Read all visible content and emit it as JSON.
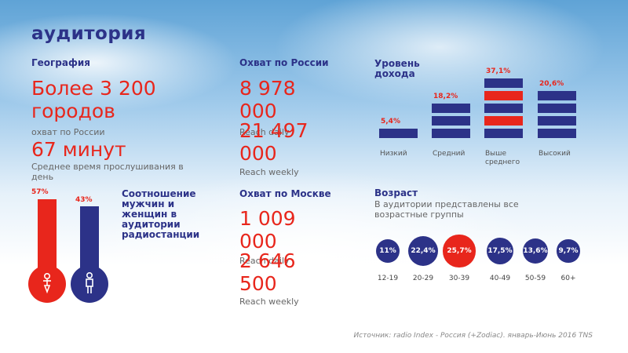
{
  "title": "аудитория",
  "geography": {
    "header": "География",
    "cities_value": "Более 3 200 городов",
    "cities_caption": "охват по России",
    "minutes_value": "67 минут",
    "minutes_caption": "Среднее время прослушивания в день"
  },
  "gender": {
    "female_pct": "57%",
    "male_pct": "43%",
    "female_fraction": 0.57,
    "male_fraction": 0.43,
    "caption": "Соотношение мужчин и женщин в аудитории радиостанции",
    "female_icon": "female-person-icon",
    "male_icon": "male-person-icon"
  },
  "reach_russia": {
    "header": "Охват по России",
    "daily_value": "8 978 000",
    "daily_label": "Reach daily",
    "weekly_value": "21 497 000",
    "weekly_label": "Reach weekly"
  },
  "reach_moscow": {
    "header": "Охват по Москве",
    "daily_value": "1 009 000",
    "daily_label": "Reach daily",
    "weekly_value": "2 646 500",
    "weekly_label": "Reach weekly"
  },
  "income": {
    "header": "Уровень дохода",
    "items": [
      {
        "pct": "5,4%",
        "label": "Низкий",
        "bars": 1,
        "highlight": false
      },
      {
        "pct": "18,2%",
        "label": "Средний",
        "bars": 3,
        "highlight": false
      },
      {
        "pct": "37,1%",
        "label": "Выше среднего",
        "bars": 5,
        "highlight": true
      },
      {
        "pct": "20,6%",
        "label": "Высокий",
        "bars": 4,
        "highlight": false
      }
    ]
  },
  "age": {
    "header": "Возраст",
    "caption": "В аудитории представлены все возрастные группы",
    "groups": [
      {
        "pct": "11%",
        "label": "12-19",
        "value": 11,
        "highlight": false
      },
      {
        "pct": "22,4%",
        "label": "20-29",
        "value": 22.4,
        "highlight": false
      },
      {
        "pct": "25,7%",
        "label": "30-39",
        "value": 25.7,
        "highlight": true
      },
      {
        "pct": "17,5%",
        "label": "40-49",
        "value": 17.5,
        "highlight": false
      },
      {
        "pct": "13,6%",
        "label": "50-59",
        "value": 13.6,
        "highlight": false
      },
      {
        "pct": "9,7%",
        "label": "60+",
        "value": 9.7,
        "highlight": false
      }
    ]
  },
  "source": "Источник: radio Index - Россия (+Zodiac). январь-Июнь 2016 TNS",
  "colors": {
    "brand_blue": "#2c3288",
    "accent_red": "#e8261c"
  }
}
